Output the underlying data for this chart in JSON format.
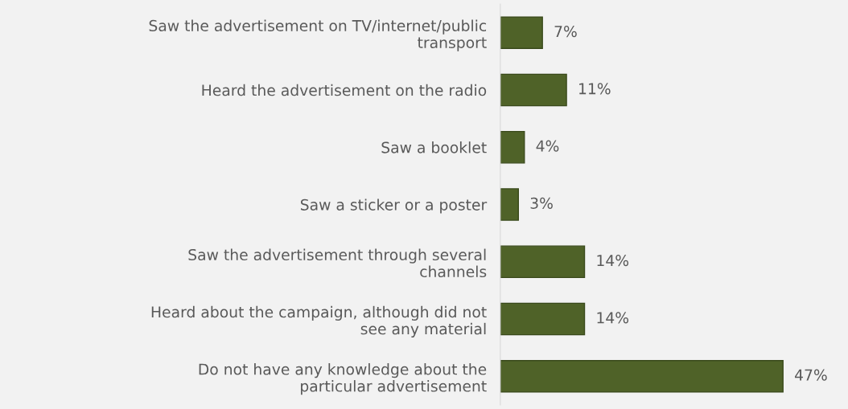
{
  "chart_data": {
    "type": "bar",
    "orientation": "horizontal",
    "categories": [
      "Saw the advertisement on TV/internet/public transport",
      "Heard the advertisement on the radio",
      "Saw a booklet",
      "Saw a sticker or a poster",
      "Saw the advertisement through several channels",
      "Heard about the campaign, although did not see any material",
      "Do not have any knowledge about the particular advertisement"
    ],
    "values": [
      7,
      11,
      4,
      3,
      14,
      14,
      47
    ],
    "value_labels": [
      "7%",
      "11%",
      "4%",
      "3%",
      "14%",
      "14%",
      "47%"
    ],
    "color": "#4f6228",
    "grid": false,
    "legend": false
  }
}
